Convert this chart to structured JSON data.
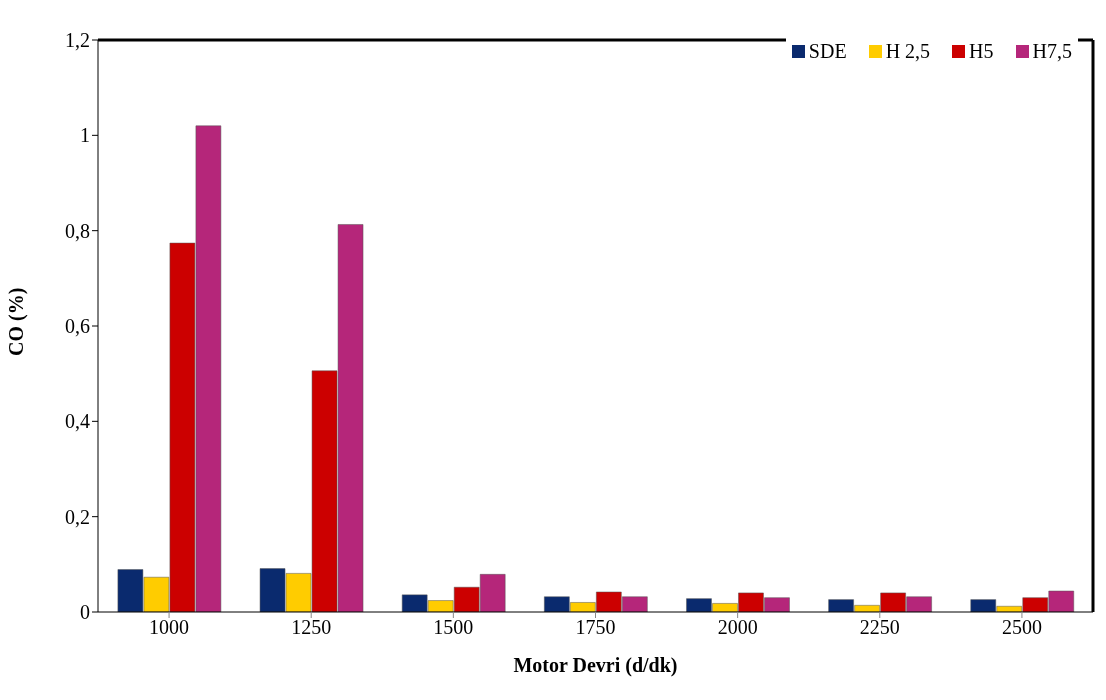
{
  "chart_data": {
    "type": "bar",
    "xlabel": "Motor Devri (d/dk)",
    "ylabel": "CO (%)",
    "categories": [
      "1000",
      "1250",
      "1500",
      "1750",
      "2000",
      "2250",
      "2500"
    ],
    "series": [
      {
        "name": "SDE",
        "color": "#0a2a6e",
        "values": [
          0.089,
          0.091,
          0.036,
          0.032,
          0.028,
          0.026,
          0.026
        ]
      },
      {
        "name": "H 2,5",
        "color": "#ffcc00",
        "values": [
          0.073,
          0.081,
          0.024,
          0.02,
          0.018,
          0.014,
          0.012
        ]
      },
      {
        "name": "H5",
        "color": "#cc0000",
        "values": [
          0.774,
          0.506,
          0.052,
          0.042,
          0.04,
          0.04,
          0.03
        ]
      },
      {
        "name": "H7,5",
        "color": "#b5267a",
        "values": [
          1.02,
          0.813,
          0.079,
          0.032,
          0.03,
          0.032,
          0.044
        ]
      }
    ],
    "ylim": [
      0,
      1.2
    ],
    "yticks": [
      {
        "value": 0,
        "label": "0"
      },
      {
        "value": 0.2,
        "label": "0,2"
      },
      {
        "value": 0.4,
        "label": "0,4"
      },
      {
        "value": 0.6,
        "label": "0,6"
      },
      {
        "value": 0.8,
        "label": "0,8"
      },
      {
        "value": 1,
        "label": "1"
      },
      {
        "value": 1.2,
        "label": "1,2"
      }
    ],
    "grid": false,
    "legend": "top right"
  }
}
